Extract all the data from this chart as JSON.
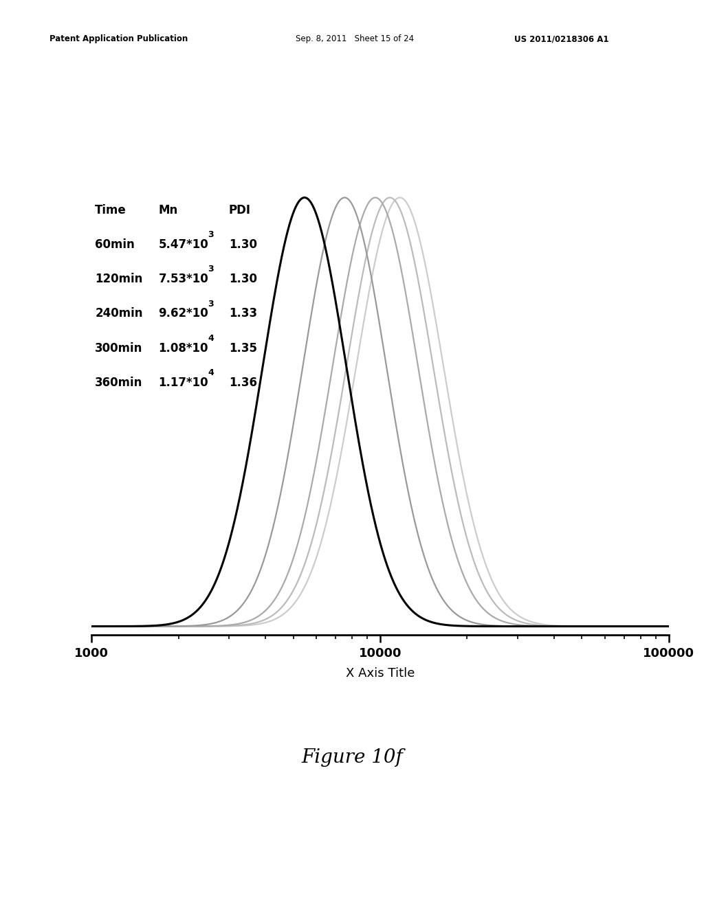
{
  "curves": [
    {
      "time": "60min",
      "Mn": 5470,
      "PDI": 1.3,
      "color": "#000000",
      "linewidth": 2.2
    },
    {
      "time": "120min",
      "Mn": 7530,
      "PDI": 1.3,
      "color": "#999999",
      "linewidth": 1.6
    },
    {
      "time": "240min",
      "Mn": 9620,
      "PDI": 1.33,
      "color": "#aaaaaa",
      "linewidth": 1.6
    },
    {
      "time": "300min",
      "Mn": 10800,
      "PDI": 1.35,
      "color": "#bbbbbb",
      "linewidth": 1.6
    },
    {
      "time": "360min",
      "Mn": 11700,
      "PDI": 1.36,
      "color": "#cccccc",
      "linewidth": 1.6
    }
  ],
  "xmin": 1000,
  "xmax": 100000,
  "xlabel": "X Axis Title",
  "background_color": "#ffffff",
  "header_left": "Patent Application Publication",
  "header_mid": "Sep. 8, 2011   Sheet 15 of 24",
  "header_right": "US 2011/0218306 A1",
  "figure_label": "Figure 10f",
  "table_header": [
    "Time",
    "Mn",
    "PDI"
  ],
  "table_rows": [
    [
      "60min",
      "5.47*10",
      "3",
      "1.30"
    ],
    [
      "120min",
      "7.53*10",
      "3",
      "1.30"
    ],
    [
      "240min",
      "9.62*10",
      "3",
      "1.33"
    ],
    [
      "300min",
      "1.08*10",
      "4",
      "1.35"
    ],
    [
      "360min",
      "1.17*10",
      "4",
      "1.36"
    ]
  ],
  "sigma_scale": 0.28
}
